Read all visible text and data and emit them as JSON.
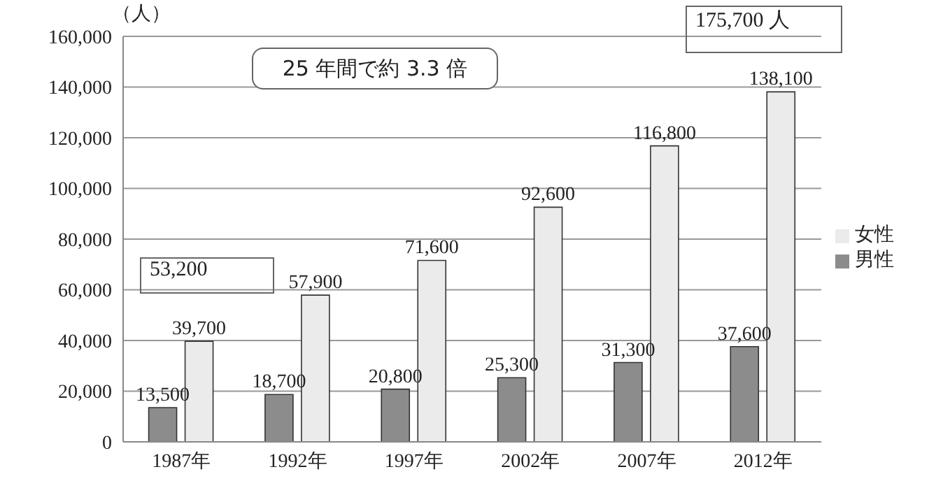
{
  "chart_data": {
    "type": "bar",
    "ylabel": "（人）",
    "categories": [
      "1987年",
      "1992年",
      "1997年",
      "2002年",
      "2007年",
      "2012年"
    ],
    "series": [
      {
        "name": "男性",
        "color": "#8c8c8c",
        "values": [
          13500,
          18700,
          20800,
          25300,
          31300,
          37600
        ],
        "value_labels": [
          "13,500",
          "18,700",
          "20,800",
          "25,300",
          "31,300",
          "37,600"
        ]
      },
      {
        "name": "女性",
        "color": "#ebebeb",
        "values": [
          39700,
          57900,
          71600,
          92600,
          116800,
          138100
        ],
        "value_labels": [
          "39,700",
          "57,900",
          "71,600",
          "92,600",
          "116,800",
          "138,100"
        ]
      }
    ],
    "ylim": [
      0,
      160000
    ],
    "yticks": [
      {
        "value": 0,
        "label": "0"
      },
      {
        "value": 20000,
        "label": "20,000"
      },
      {
        "value": 40000,
        "label": "40,000"
      },
      {
        "value": 60000,
        "label": "60,000"
      },
      {
        "value": 80000,
        "label": "80,000"
      },
      {
        "value": 100000,
        "label": "100,000"
      },
      {
        "value": 120000,
        "label": "120,000"
      },
      {
        "value": 140000,
        "label": "140,000"
      },
      {
        "value": 160000,
        "label": "160,000"
      }
    ],
    "grid": "y",
    "legend": "right",
    "annotations": [
      "25 年間で約 3.3 倍",
      "53,200",
      "175,700 人"
    ]
  }
}
